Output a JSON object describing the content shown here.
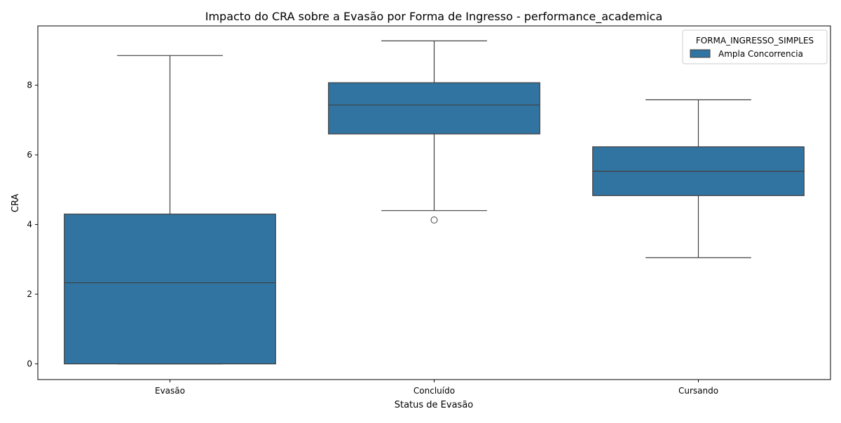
{
  "chart_data": {
    "type": "box",
    "title": "Impacto do CRA sobre a Evasão por Forma de Ingresso - performance_academica",
    "xlabel": "Status de Evasão",
    "ylabel": "CRA",
    "categories": [
      "Evasão",
      "Concluído",
      "Cursando"
    ],
    "ylim": [
      -0.45,
      9.7
    ],
    "yticks": [
      0,
      2,
      4,
      6,
      8
    ],
    "grid": false,
    "legend": {
      "title": "FORMA_INGRESSO_SIMPLES",
      "placement": "top-right",
      "entries": [
        {
          "label": "Ampla Concorrencia",
          "color": "#3274a1"
        }
      ]
    },
    "series": [
      {
        "name": "Ampla Concorrencia",
        "color": "#3274a1",
        "boxes": [
          {
            "category": "Evasão",
            "whisker_low": 0.0,
            "q1": 0.0,
            "median": 2.33,
            "q3": 4.3,
            "whisker_high": 8.85,
            "outliers": []
          },
          {
            "category": "Concluído",
            "whisker_low": 4.4,
            "q1": 6.6,
            "median": 7.43,
            "q3": 8.07,
            "whisker_high": 9.27,
            "outliers": [
              4.13
            ]
          },
          {
            "category": "Cursando",
            "whisker_low": 3.05,
            "q1": 4.83,
            "median": 5.53,
            "q3": 6.23,
            "whisker_high": 7.58,
            "outliers": []
          }
        ]
      }
    ]
  }
}
